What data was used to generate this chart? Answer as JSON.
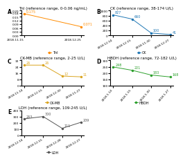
{
  "title_A": "TnI (reference range, 0-0.06 ng/mL)",
  "title_B": "CK (reference range, 38-174 U/L)",
  "title_C": "CK-MB (reference range, 2-25 U/L)",
  "title_D": "HBDH (reference range, 72-182 U/L)",
  "title_E": "LDH (reference range, 109-245 U/L)",
  "dates_A": [
    "2018.11.15",
    "2018.12.25"
  ],
  "values_A": [
    0.175,
    0.071
  ],
  "color_A": "#FF8C00",
  "label_A": "TnI",
  "dates_B": [
    "2018.12.14",
    "2018.12.15",
    "2018.11.30",
    "2018.12.27"
  ],
  "values_B": [
    827,
    660,
    100,
    41
  ],
  "color_B": "#1F77B4",
  "label_B": "CK",
  "dates_C": [
    "2018.11.14",
    "2018.12.15",
    "2018.12.30",
    "2018.11.27"
  ],
  "values_C": [
    26,
    26,
    12,
    11
  ],
  "color_C": "#DAA520",
  "label_C": "CK-MB",
  "dates_D": [
    "2018.1.14",
    "2018.1.15",
    "2018.1.30",
    "2018.1.27"
  ],
  "values_D": [
    248,
    221,
    183,
    168
  ],
  "color_D": "#2CA02C",
  "label_D": "HBDH",
  "dates_E": [
    "2018.12.14",
    "2018.12.15",
    "2018.12.28",
    "2018.12.27"
  ],
  "values_E": [
    263,
    300,
    111,
    209
  ],
  "color_E": "#555555",
  "label_E": "LDH",
  "bg_color": "#FFFFFF",
  "title_fontsize": 4.0,
  "annot_fontsize": 3.5,
  "tick_fontsize": 3.2,
  "legend_fontsize": 3.5,
  "panel_label_fontsize": 5.5,
  "marker": "o",
  "marker_size": 1.5,
  "linewidth": 0.7
}
